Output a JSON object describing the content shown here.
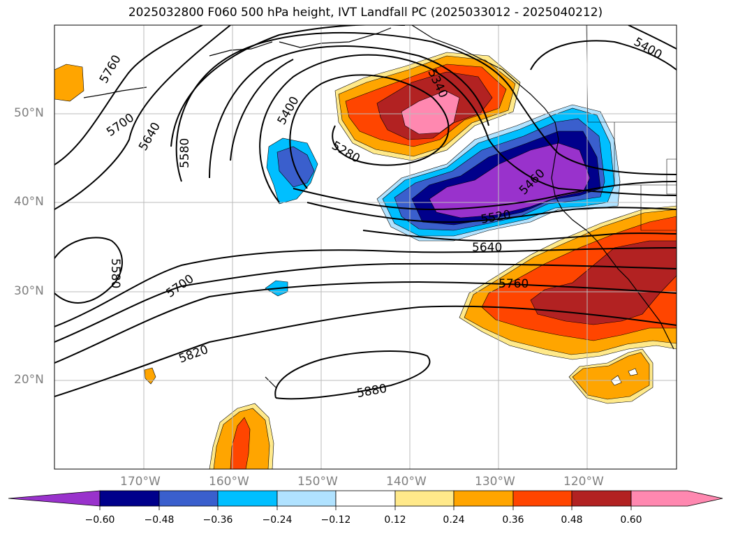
{
  "title": "2025032800 F060 500 hPa height, IVT Landfall PC (2025033012 - 2025040212)",
  "latitude_labels": [
    "50°N",
    "40°N",
    "30°N",
    "20°N"
  ],
  "longitude_labels": [
    "170°W",
    "160°W",
    "150°W",
    "140°W",
    "130°W",
    "120°W"
  ],
  "contour_labels": [
    "5760",
    "5700",
    "5640",
    "5580",
    "5400",
    "5340",
    "5280",
    "5460",
    "5520",
    "5640",
    "5580",
    "5700",
    "5760",
    "5820",
    "5880",
    "5400"
  ],
  "colorbar": {
    "tick_labels": [
      "−0.60",
      "−0.48",
      "−0.36",
      "−0.24",
      "−0.12",
      "0.12",
      "0.24",
      "0.36",
      "0.48",
      "0.60"
    ],
    "colors": [
      "#9932CC",
      "#00008B",
      "#3A5FCD",
      "#00BFFF",
      "#B0E2FF",
      "#FFFFFF",
      "#FFE98A",
      "#FFA500",
      "#FF4500",
      "#B22222",
      "#FF88B0"
    ]
  }
}
